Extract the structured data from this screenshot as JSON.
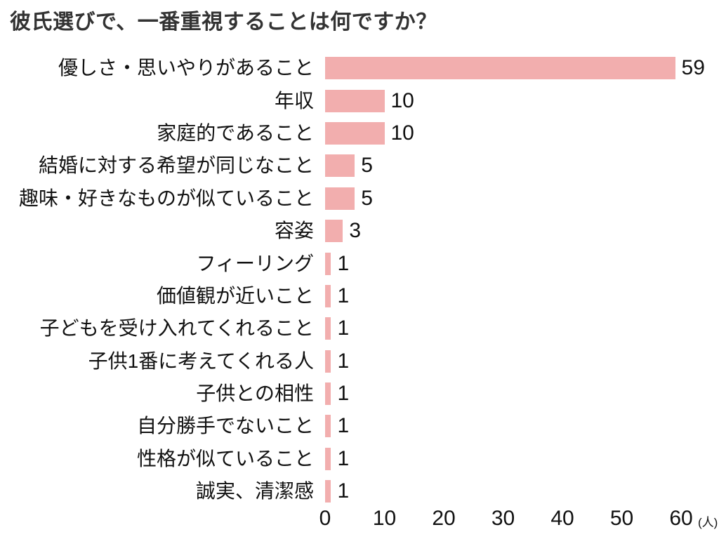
{
  "chart_data": {
    "type": "bar",
    "orientation": "horizontal",
    "title": "彼氏選びで、一番重視することは何ですか？",
    "categories": [
      "優しさ・思いやりがあること",
      "年収",
      "家庭的であること",
      "結婚に対する希望が同じなこと",
      "趣味・好きなものが似ていること",
      "容姿",
      "フィーリング",
      "価値観が近いこと",
      "子どもを受け入れてくれること",
      "子供1番に考えてくれる人",
      "子供との相性",
      "自分勝手でないこと",
      "性格が似ていること",
      "誠実、清潔感"
    ],
    "values": [
      59,
      10,
      10,
      5,
      5,
      3,
      1,
      1,
      1,
      1,
      1,
      1,
      1,
      1
    ],
    "value_labels_shown": true,
    "x_ticks": [
      0,
      10,
      20,
      30,
      40,
      50,
      60
    ],
    "xlim": [
      0,
      66
    ],
    "unit_label": "(人)",
    "xlabel": "",
    "ylabel": "",
    "grid": false,
    "legend": "none",
    "bar_color": "#f2aeae",
    "title_color": "#333333",
    "text_color": "#111111"
  }
}
